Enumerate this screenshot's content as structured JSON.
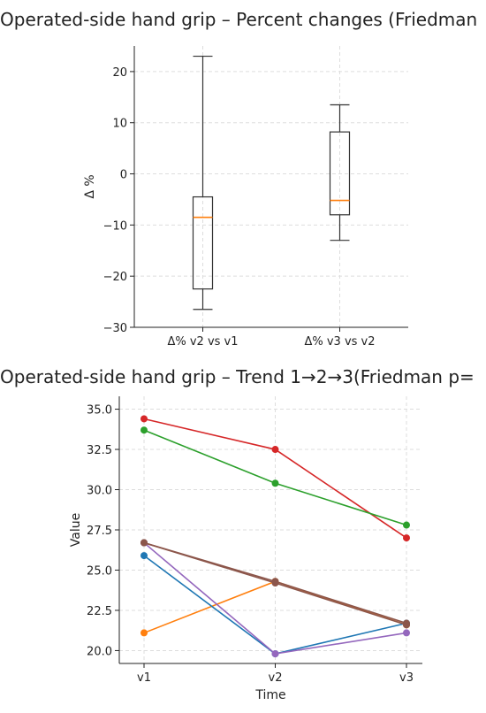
{
  "chart_data": [
    {
      "type": "box",
      "title": "Operated-side hand grip – Percent changes (Friedman",
      "xlabel": "",
      "ylabel": "Δ %",
      "ylim": [
        -30,
        25
      ],
      "yticks": [
        "20",
        "10",
        "0",
        "−10",
        "−20",
        "−30"
      ],
      "yticks_values": [
        20,
        10,
        0,
        -10,
        -20,
        -30
      ],
      "categories": [
        "Δ% v2 vs v1",
        "Δ% v3 vs v2"
      ],
      "boxes": [
        {
          "whisker_low": -26.5,
          "q1": -22.5,
          "median": -8.5,
          "q3": -4.5,
          "whisker_high": 23
        },
        {
          "whisker_low": -13,
          "q1": -8,
          "median": -5.2,
          "q3": 8.2,
          "whisker_high": 13.5
        }
      ],
      "colors": {
        "box": "#333333",
        "median": "#ff7f0e"
      },
      "grid": true
    },
    {
      "type": "line",
      "title": "Operated-side hand grip – Trend 1→2→3(Friedman p=",
      "xlabel": "Time",
      "ylabel": "Value",
      "ylim": [
        19.2,
        35.8
      ],
      "categories": [
        "v1",
        "v2",
        "v3"
      ],
      "yticks": [
        "35.0",
        "32.5",
        "30.0",
        "27.5",
        "25.0",
        "22.5",
        "20.0"
      ],
      "yticks_values": [
        35,
        32.5,
        30,
        27.5,
        25,
        22.5,
        20
      ],
      "series": [
        {
          "color": "#d62728",
          "values": [
            34.4,
            32.5,
            27.0
          ]
        },
        {
          "color": "#2ca02c",
          "values": [
            33.7,
            30.4,
            27.8
          ]
        },
        {
          "color": "#ff7f0e",
          "values": [
            21.1,
            24.3,
            21.6
          ]
        },
        {
          "color": "#1f77b4",
          "values": [
            25.9,
            19.8,
            21.7
          ]
        },
        {
          "color": "#9467bd",
          "values": [
            26.7,
            19.8,
            21.1
          ]
        },
        {
          "color": "#8c564b",
          "values": [
            26.7,
            24.3,
            21.7
          ]
        },
        {
          "color": "#8c564b",
          "values": [
            26.7,
            24.2,
            21.6
          ]
        }
      ],
      "grid": true
    }
  ]
}
